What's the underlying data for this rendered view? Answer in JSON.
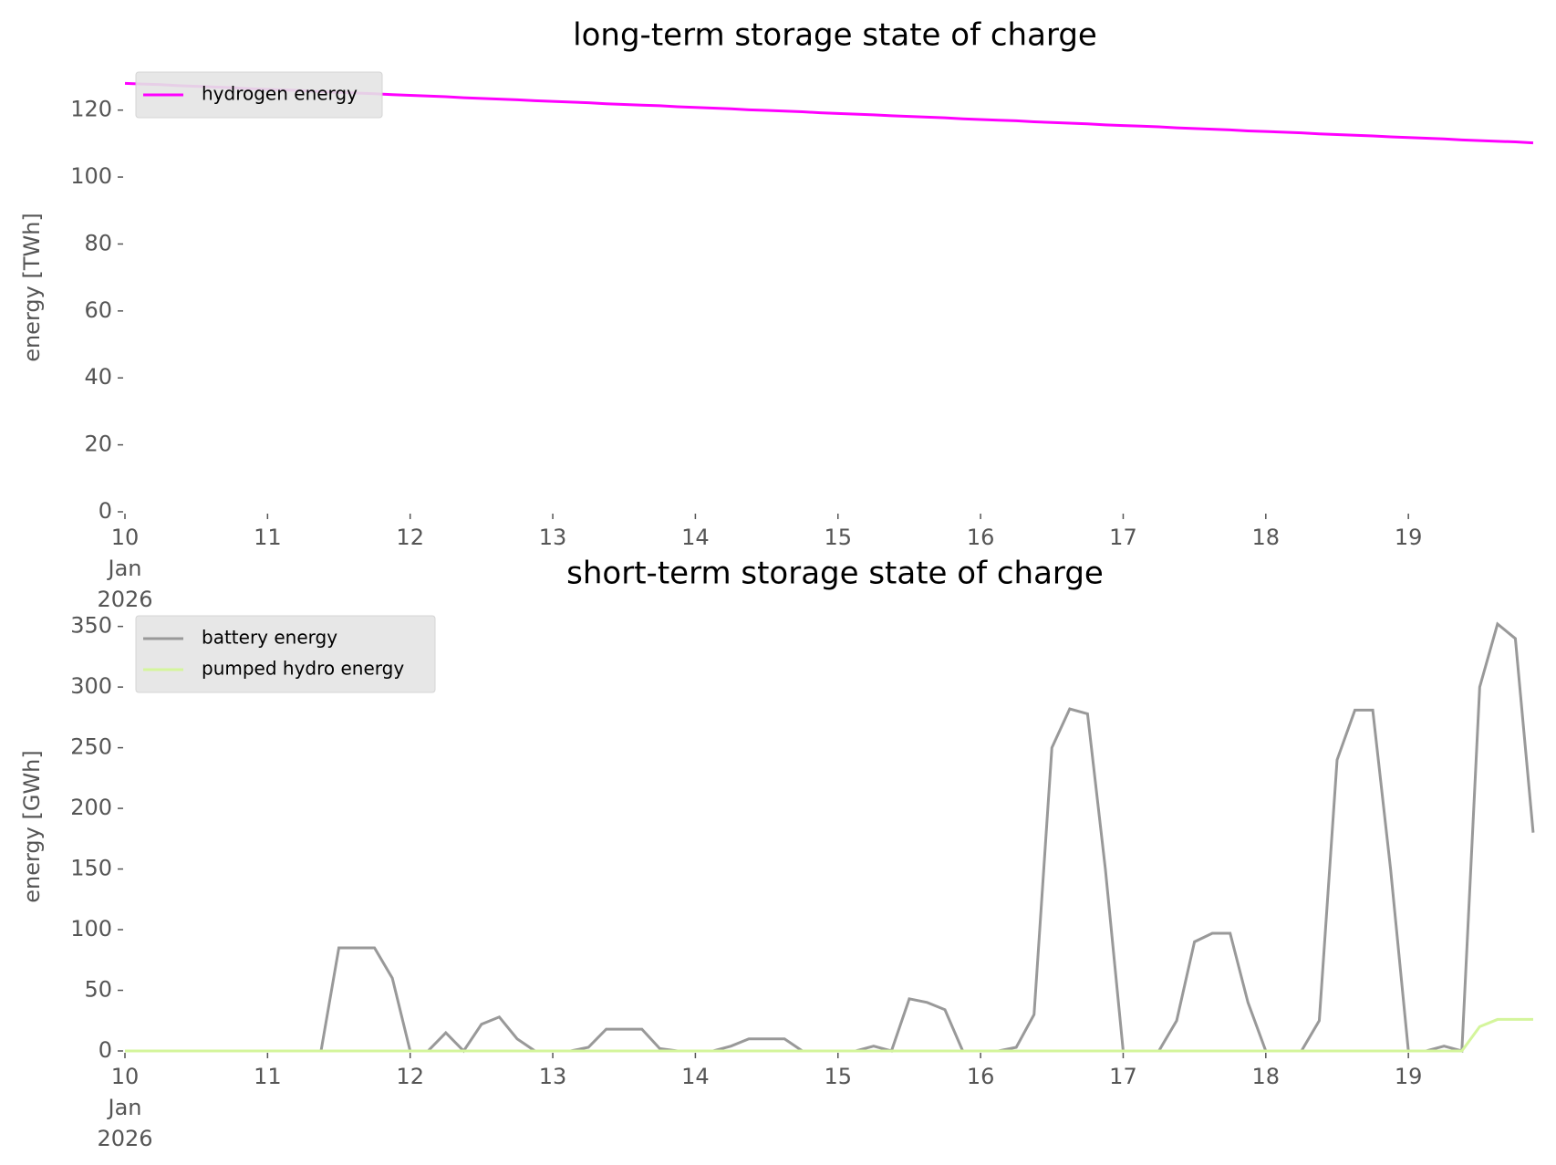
{
  "chart_data": [
    {
      "type": "line",
      "title": "long-term storage state of charge",
      "y_label": "energy [TWh]",
      "x": [
        "2026-01-10 00:00",
        "2026-01-10 03:00",
        "2026-01-10 06:00",
        "2026-01-10 09:00",
        "2026-01-10 12:00",
        "2026-01-10 15:00",
        "2026-01-10 18:00",
        "2026-01-10 21:00",
        "2026-01-11 00:00",
        "2026-01-11 03:00",
        "2026-01-11 06:00",
        "2026-01-11 09:00",
        "2026-01-11 12:00",
        "2026-01-11 15:00",
        "2026-01-11 18:00",
        "2026-01-11 21:00",
        "2026-01-12 00:00",
        "2026-01-12 03:00",
        "2026-01-12 06:00",
        "2026-01-12 09:00",
        "2026-01-12 12:00",
        "2026-01-12 15:00",
        "2026-01-12 18:00",
        "2026-01-12 21:00",
        "2026-01-13 00:00",
        "2026-01-13 03:00",
        "2026-01-13 06:00",
        "2026-01-13 09:00",
        "2026-01-13 12:00",
        "2026-01-13 15:00",
        "2026-01-13 18:00",
        "2026-01-13 21:00",
        "2026-01-14 00:00",
        "2026-01-14 03:00",
        "2026-01-14 06:00",
        "2026-01-14 09:00",
        "2026-01-14 12:00",
        "2026-01-14 15:00",
        "2026-01-14 18:00",
        "2026-01-14 21:00",
        "2026-01-15 00:00",
        "2026-01-15 03:00",
        "2026-01-15 06:00",
        "2026-01-15 09:00",
        "2026-01-15 12:00",
        "2026-01-15 15:00",
        "2026-01-15 18:00",
        "2026-01-15 21:00",
        "2026-01-16 00:00",
        "2026-01-16 03:00",
        "2026-01-16 06:00",
        "2026-01-16 09:00",
        "2026-01-16 12:00",
        "2026-01-16 15:00",
        "2026-01-16 18:00",
        "2026-01-16 21:00",
        "2026-01-17 00:00",
        "2026-01-17 03:00",
        "2026-01-17 06:00",
        "2026-01-17 09:00",
        "2026-01-17 12:00",
        "2026-01-17 15:00",
        "2026-01-17 18:00",
        "2026-01-17 21:00",
        "2026-01-18 00:00",
        "2026-01-18 03:00",
        "2026-01-18 06:00",
        "2026-01-18 09:00",
        "2026-01-18 12:00",
        "2026-01-18 15:00",
        "2026-01-18 18:00",
        "2026-01-18 21:00",
        "2026-01-19 00:00",
        "2026-01-19 03:00",
        "2026-01-19 06:00",
        "2026-01-19 09:00",
        "2026-01-19 12:00",
        "2026-01-19 15:00",
        "2026-01-19 18:00",
        "2026-01-19 21:00"
      ],
      "series": [
        {
          "name": "hydrogen energy",
          "color": "#ff00ff",
          "values": [
            128.0,
            127.8,
            127.6,
            127.3,
            127.1,
            126.9,
            126.7,
            126.4,
            126.2,
            126.0,
            125.8,
            125.5,
            125.3,
            125.1,
            124.9,
            124.6,
            124.4,
            124.2,
            124.0,
            123.7,
            123.5,
            123.3,
            123.1,
            122.8,
            122.6,
            122.4,
            122.2,
            121.9,
            121.7,
            121.5,
            121.3,
            121.0,
            120.8,
            120.6,
            120.4,
            120.1,
            119.9,
            119.7,
            119.5,
            119.2,
            119.0,
            118.8,
            118.6,
            118.3,
            118.1,
            117.9,
            117.7,
            117.4,
            117.2,
            117.0,
            116.8,
            116.5,
            116.3,
            116.1,
            115.9,
            115.6,
            115.4,
            115.2,
            115.0,
            114.7,
            114.5,
            114.3,
            114.1,
            113.8,
            113.6,
            113.4,
            113.2,
            112.9,
            112.7,
            112.5,
            112.3,
            112.0,
            111.8,
            111.6,
            111.4,
            111.1,
            110.9,
            110.7,
            110.5,
            110.2
          ]
        }
      ],
      "xlim": [
        "2026-01-10 00:00",
        "2026-01-19 23:00"
      ],
      "xticks": [
        {
          "value": "2026-01-10 00:00",
          "label": "10\nJan\n2026"
        },
        {
          "value": "2026-01-11 00:00",
          "label": "11"
        },
        {
          "value": "2026-01-12 00:00",
          "label": "12"
        },
        {
          "value": "2026-01-13 00:00",
          "label": "13"
        },
        {
          "value": "2026-01-14 00:00",
          "label": "14"
        },
        {
          "value": "2026-01-15 00:00",
          "label": "15"
        },
        {
          "value": "2026-01-16 00:00",
          "label": "16"
        },
        {
          "value": "2026-01-17 00:00",
          "label": "17"
        },
        {
          "value": "2026-01-18 00:00",
          "label": "18"
        },
        {
          "value": "2026-01-19 00:00",
          "label": "19"
        }
      ],
      "ylim": [
        0,
        130
      ],
      "yticks": [
        0,
        20,
        40,
        60,
        80,
        100,
        120
      ],
      "legend": "upper left"
    },
    {
      "type": "line",
      "title": "short-term storage state of charge",
      "y_label": "energy [GWh]",
      "x": [
        "2026-01-10 00:00",
        "2026-01-10 03:00",
        "2026-01-10 06:00",
        "2026-01-10 09:00",
        "2026-01-10 12:00",
        "2026-01-10 15:00",
        "2026-01-10 18:00",
        "2026-01-10 21:00",
        "2026-01-11 00:00",
        "2026-01-11 03:00",
        "2026-01-11 06:00",
        "2026-01-11 09:00",
        "2026-01-11 12:00",
        "2026-01-11 15:00",
        "2026-01-11 18:00",
        "2026-01-11 21:00",
        "2026-01-12 00:00",
        "2026-01-12 03:00",
        "2026-01-12 06:00",
        "2026-01-12 09:00",
        "2026-01-12 12:00",
        "2026-01-12 15:00",
        "2026-01-12 18:00",
        "2026-01-12 21:00",
        "2026-01-13 00:00",
        "2026-01-13 03:00",
        "2026-01-13 06:00",
        "2026-01-13 09:00",
        "2026-01-13 12:00",
        "2026-01-13 15:00",
        "2026-01-13 18:00",
        "2026-01-13 21:00",
        "2026-01-14 00:00",
        "2026-01-14 03:00",
        "2026-01-14 06:00",
        "2026-01-14 09:00",
        "2026-01-14 12:00",
        "2026-01-14 15:00",
        "2026-01-14 18:00",
        "2026-01-14 21:00",
        "2026-01-15 00:00",
        "2026-01-15 03:00",
        "2026-01-15 06:00",
        "2026-01-15 09:00",
        "2026-01-15 12:00",
        "2026-01-15 15:00",
        "2026-01-15 18:00",
        "2026-01-15 21:00",
        "2026-01-16 00:00",
        "2026-01-16 03:00",
        "2026-01-16 06:00",
        "2026-01-16 09:00",
        "2026-01-16 12:00",
        "2026-01-16 15:00",
        "2026-01-16 18:00",
        "2026-01-16 21:00",
        "2026-01-17 00:00",
        "2026-01-17 03:00",
        "2026-01-17 06:00",
        "2026-01-17 09:00",
        "2026-01-17 12:00",
        "2026-01-17 15:00",
        "2026-01-17 18:00",
        "2026-01-17 21:00",
        "2026-01-18 00:00",
        "2026-01-18 03:00",
        "2026-01-18 06:00",
        "2026-01-18 09:00",
        "2026-01-18 12:00",
        "2026-01-18 15:00",
        "2026-01-18 18:00",
        "2026-01-18 21:00",
        "2026-01-19 00:00",
        "2026-01-19 03:00",
        "2026-01-19 06:00",
        "2026-01-19 09:00",
        "2026-01-19 12:00",
        "2026-01-19 15:00",
        "2026-01-19 18:00",
        "2026-01-19 21:00"
      ],
      "series": [
        {
          "name": "battery energy",
          "color": "#999999",
          "values": [
            0,
            0,
            0,
            0,
            0,
            0,
            0,
            0,
            0,
            0,
            0,
            0,
            85,
            85,
            85,
            60,
            0,
            0,
            15,
            0,
            22,
            28,
            10,
            0,
            0,
            0,
            3,
            18,
            18,
            18,
            2,
            0,
            0,
            0,
            4,
            10,
            10,
            10,
            0,
            0,
            0,
            0,
            4,
            0,
            43,
            40,
            34,
            0,
            0,
            0,
            3,
            30,
            250,
            282,
            278,
            150,
            0,
            0,
            0,
            25,
            90,
            97,
            97,
            40,
            0,
            0,
            0,
            25,
            240,
            281,
            281,
            150,
            0,
            0,
            4,
            0,
            300,
            352,
            340,
            180
          ]
        },
        {
          "name": "pumped hydro energy",
          "color": "#d4f59c",
          "values": [
            0,
            0,
            0,
            0,
            0,
            0,
            0,
            0,
            0,
            0,
            0,
            0,
            0,
            0,
            0,
            0,
            0,
            0,
            0,
            0,
            0,
            0,
            0,
            0,
            0,
            0,
            0,
            0,
            0,
            0,
            0,
            0,
            0,
            0,
            0,
            0,
            0,
            0,
            0,
            0,
            0,
            0,
            0,
            0,
            0,
            0,
            0,
            0,
            0,
            0,
            0,
            0,
            0,
            0,
            0,
            0,
            0,
            0,
            0,
            0,
            0,
            0,
            0,
            0,
            0,
            0,
            0,
            0,
            0,
            0,
            0,
            0,
            0,
            0,
            0,
            0,
            20,
            26,
            26,
            26
          ]
        }
      ],
      "xlim": [
        "2026-01-10 00:00",
        "2026-01-19 23:00"
      ],
      "xticks": [
        {
          "value": "2026-01-10 00:00",
          "label": "10\nJan\n2026"
        },
        {
          "value": "2026-01-11 00:00",
          "label": "11"
        },
        {
          "value": "2026-01-12 00:00",
          "label": "12"
        },
        {
          "value": "2026-01-13 00:00",
          "label": "13"
        },
        {
          "value": "2026-01-14 00:00",
          "label": "14"
        },
        {
          "value": "2026-01-15 00:00",
          "label": "15"
        },
        {
          "value": "2026-01-16 00:00",
          "label": "16"
        },
        {
          "value": "2026-01-17 00:00",
          "label": "17"
        },
        {
          "value": "2026-01-18 00:00",
          "label": "18"
        },
        {
          "value": "2026-01-19 00:00",
          "label": "19"
        }
      ],
      "ylim": [
        0,
        355
      ],
      "yticks": [
        0,
        50,
        100,
        150,
        200,
        250,
        300,
        350
      ],
      "legend": "upper left"
    }
  ]
}
